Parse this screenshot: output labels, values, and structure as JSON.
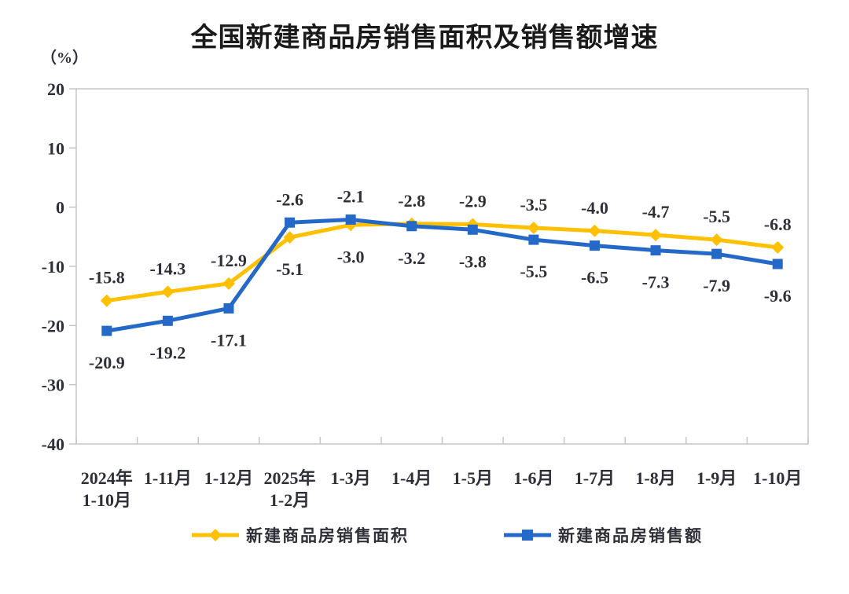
{
  "chart_data": {
    "type": "line",
    "title": "全国新建商品房销售面积及销售额增速",
    "unit": "（%）",
    "categories": [
      "2024年\n1-10月",
      "1-11月",
      "1-12月",
      "2025年\n1-2月",
      "1-3月",
      "1-4月",
      "1-5月",
      "1-6月",
      "1-7月",
      "1-8月",
      "1-9月",
      "1-10月"
    ],
    "series": [
      {
        "name": "新建商品房销售面积",
        "color": "#FFC000",
        "marker": "diamond",
        "values": [
          -15.8,
          -14.3,
          -12.9,
          -5.1,
          -3.0,
          -2.8,
          -2.9,
          -3.5,
          -4.0,
          -4.7,
          -5.5,
          -6.8
        ]
      },
      {
        "name": "新建商品房销售额",
        "color": "#2569C8",
        "marker": "square",
        "values": [
          -20.9,
          -19.2,
          -17.1,
          -2.6,
          -2.1,
          -3.2,
          -3.8,
          -5.5,
          -6.5,
          -7.3,
          -7.9,
          -9.6
        ]
      }
    ],
    "ylim": [
      -40,
      20
    ],
    "y_ticks": [
      20,
      10,
      0,
      -10,
      -20,
      -30,
      -40
    ],
    "grid": false,
    "legend_position": "bottom",
    "axis_color": "#C6C6C6",
    "label_color": "#2f2f38"
  }
}
